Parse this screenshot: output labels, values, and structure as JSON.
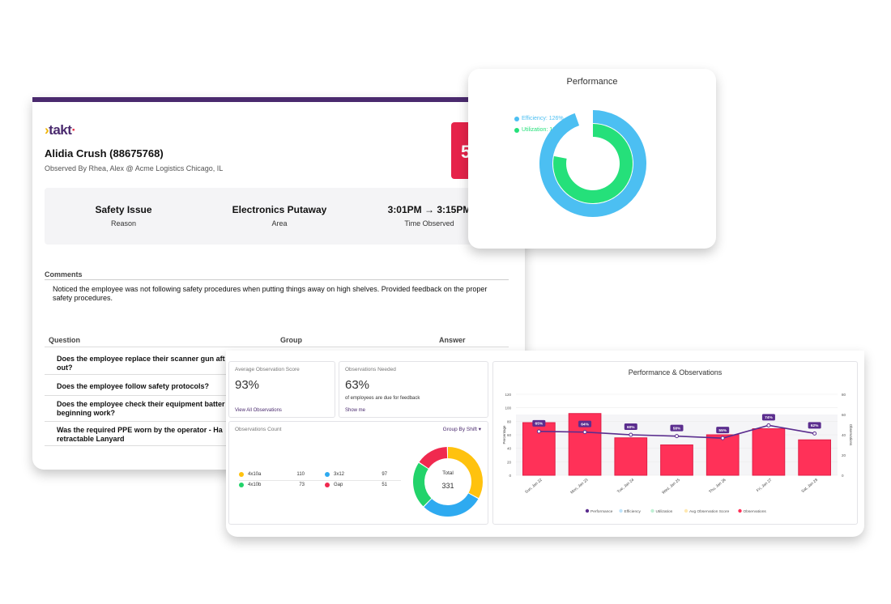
{
  "report": {
    "logo": "takt",
    "employee": "Alidia Crush (88675768)",
    "observed_by": "Observed By Rhea, Alex @ Acme Logistics Chicago, IL",
    "score_badge": "5",
    "reason": {
      "value": "Safety Issue",
      "label": "Reason"
    },
    "area": {
      "value": "Electronics Putaway",
      "label": "Area"
    },
    "time": {
      "value": "3:01PM → 3:15PM",
      "label": "Time Observed"
    },
    "comments_label": "Comments",
    "comments_text": "Noticed the employee was not following safety procedures when putting things away on high shelves. Provided feedback on the proper safety procedures.",
    "table_headers": {
      "question": "Question",
      "group": "Group",
      "answer": "Answer"
    },
    "questions": [
      {
        "line1": "Does the employee replace their scanner gun aft",
        "line2": "out?"
      },
      {
        "line1": "Does the employee follow safety protocols?",
        "line2": ""
      },
      {
        "line1": "Does the employee check their equipment batter",
        "line2": "beginning work?"
      },
      {
        "line1": "Was the required PPE worn by the operator - Ha",
        "line2": "retractable Lanyard"
      }
    ]
  },
  "performance": {
    "title": "Performance",
    "legend": [
      {
        "label": "Efficiency: 126%",
        "color": "#4cbff2"
      },
      {
        "label": "Utilization: 104%",
        "color": "#25e07a"
      }
    ],
    "efficiency_pct": 126,
    "utilization_pct": 104
  },
  "dashboard": {
    "avg_score": {
      "label": "Average Observation Score",
      "value": "93%",
      "link": "View All Observations"
    },
    "needed": {
      "label": "Observations Needed",
      "value": "63%",
      "sub": "of employees are due for feedback",
      "link": "Show me"
    },
    "counts": {
      "label": "Observations Count",
      "group_by": "Group By Shift",
      "rows": [
        {
          "name": "4x10a",
          "value": 110,
          "color": "#ffc20e"
        },
        {
          "name": "3x12",
          "value": 97,
          "color": "#2eaaf0"
        },
        {
          "name": "4x10b",
          "value": 73,
          "color": "#22d36a"
        },
        {
          "name": "Gap",
          "value": 51,
          "color": "#f0294f"
        }
      ],
      "total_label": "Total",
      "total": "331"
    }
  },
  "chart_data": {
    "type": "bar",
    "title": "Performance & Observations",
    "categories": [
      "Sun, Jan 22",
      "Mon, Jan 23",
      "Tue, Jan 24",
      "Wed, Jan 25",
      "Thu, Jan 26",
      "Fri, Jan 27",
      "Sat, Jan 28"
    ],
    "series": [
      {
        "name": "Observations",
        "type": "bar",
        "axis": "right",
        "color": "#ff3158",
        "values": [
          52,
          61,
          37,
          30,
          40,
          46,
          35
        ]
      },
      {
        "name": "Performance",
        "type": "line",
        "axis": "left",
        "color": "#5b2d8e",
        "values": [
          65,
          64,
          60,
          58,
          55,
          74,
          62
        ],
        "labels": [
          "65%",
          "64%",
          "60%",
          "58%",
          "55%",
          "74%",
          "62%"
        ]
      }
    ],
    "left_axis": {
      "label": "Percentage",
      "ticks": [
        0,
        20,
        40,
        60,
        80,
        100,
        120
      ],
      "range": [
        0,
        120
      ]
    },
    "right_axis": {
      "label": "Observations",
      "ticks": [
        0,
        20,
        40,
        60,
        80
      ],
      "range": [
        0,
        80
      ]
    },
    "legend": [
      {
        "name": "Performance",
        "color": "#5b2d8e"
      },
      {
        "name": "Efficiency",
        "color": "#bfe3fa"
      },
      {
        "name": "Utilization",
        "color": "#bff0d4"
      },
      {
        "name": "Avg Observation Score",
        "color": "#ffe9b3"
      },
      {
        "name": "Observations",
        "color": "#ff3158"
      }
    ]
  }
}
